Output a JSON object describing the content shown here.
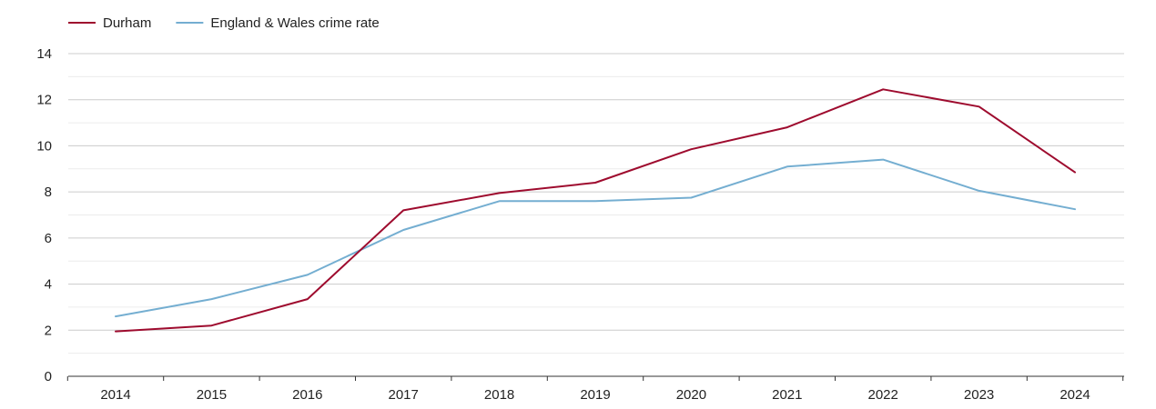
{
  "chart_data": {
    "type": "line",
    "title": "",
    "xlabel": "",
    "ylabel": "",
    "categories": [
      "2014",
      "2015",
      "2016",
      "2017",
      "2018",
      "2019",
      "2020",
      "2021",
      "2022",
      "2023",
      "2024"
    ],
    "ylim": [
      0,
      14
    ],
    "y_ticks": [
      0,
      2,
      4,
      6,
      8,
      10,
      12,
      14
    ],
    "grid": true,
    "legend_position": "top-left",
    "series": [
      {
        "name": "Durham",
        "color": "#9e0b2e",
        "values": [
          1.95,
          2.2,
          3.35,
          7.2,
          7.95,
          8.4,
          9.85,
          10.8,
          12.45,
          11.7,
          8.85
        ]
      },
      {
        "name": "England & Wales crime rate",
        "color": "#74aed1",
        "values": [
          2.6,
          3.35,
          4.4,
          6.35,
          7.6,
          7.6,
          7.75,
          9.1,
          9.4,
          8.05,
          7.25
        ]
      }
    ]
  }
}
